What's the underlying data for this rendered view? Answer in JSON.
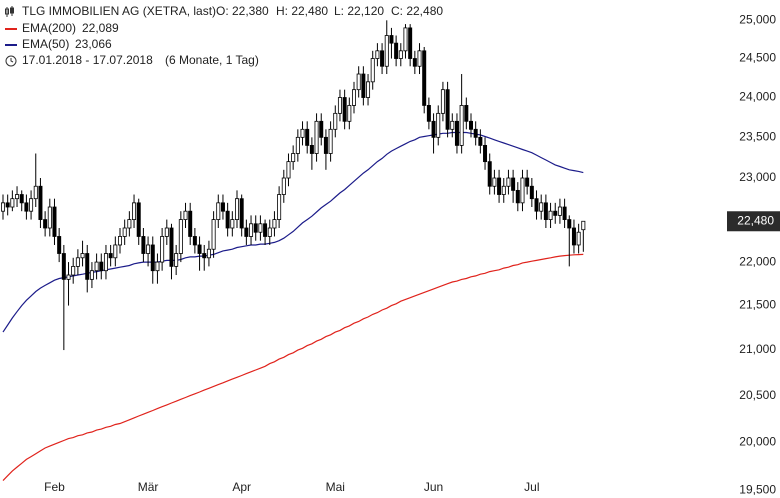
{
  "chart_data": {
    "type": "candlestick",
    "info": [
      "TLG IMMOBILIEN AG (XETRA, last)",
      "O: 22,380",
      "H: 22,480",
      "L: 22,120",
      "C: 22,480"
    ],
    "period": "17.01.2018 - 17.07.2018",
    "period_note": "(6 Monate, 1 Tag)",
    "last_price_label": "22,480",
    "log_scale": true,
    "ylim": [
      19420,
      25270
    ],
    "yticks": [
      {
        "value": 25000,
        "label": "25,000"
      },
      {
        "value": 24500,
        "label": "24,500"
      },
      {
        "value": 24000,
        "label": "24,000"
      },
      {
        "value": 23500,
        "label": "23,500"
      },
      {
        "value": 23000,
        "label": "23,000"
      },
      {
        "value": 22500,
        "label": "22,500"
      },
      {
        "value": 22000,
        "label": "22,000"
      },
      {
        "value": 21500,
        "label": "21,500"
      },
      {
        "value": 21000,
        "label": "21,000"
      },
      {
        "value": 20500,
        "label": "20,500"
      },
      {
        "value": 20000,
        "label": "20,000"
      },
      {
        "value": 19500,
        "label": "19,500"
      }
    ],
    "up_color": "#ffffff",
    "down_color": "#000000",
    "candle_color": "#000000",
    "categories": [
      null,
      null,
      null,
      null,
      null,
      null,
      null,
      null,
      null,
      null,
      null,
      "Feb",
      null,
      null,
      null,
      null,
      null,
      null,
      null,
      null,
      null,
      null,
      null,
      null,
      null,
      null,
      null,
      null,
      null,
      null,
      null,
      "Mär",
      null,
      null,
      null,
      null,
      null,
      null,
      null,
      null,
      null,
      null,
      null,
      null,
      null,
      null,
      null,
      null,
      null,
      null,
      null,
      "Apr",
      null,
      null,
      null,
      null,
      null,
      null,
      null,
      null,
      null,
      null,
      null,
      null,
      null,
      null,
      null,
      null,
      null,
      null,
      null,
      "Mai",
      null,
      null,
      null,
      null,
      null,
      null,
      null,
      null,
      null,
      null,
      null,
      null,
      null,
      null,
      null,
      null,
      null,
      null,
      null,
      null,
      "Jun",
      null,
      null,
      null,
      null,
      null,
      null,
      null,
      null,
      null,
      null,
      null,
      null,
      null,
      null,
      null,
      null,
      null,
      null,
      null,
      null,
      "Jul",
      null,
      null,
      null,
      null,
      null,
      null,
      null,
      null,
      null,
      null,
      null
    ],
    "open": [
      22600,
      22700,
      22650,
      22750,
      22800,
      22700,
      22600,
      22750,
      22900,
      22500,
      22400,
      22650,
      22300,
      22100,
      21800,
      21850,
      21950,
      22050,
      22100,
      21800,
      21900,
      22000,
      21900,
      22100,
      22050,
      22200,
      22300,
      22400,
      22500,
      22700,
      22300,
      22100,
      22200,
      21900,
      22000,
      22300,
      22400,
      21950,
      22100,
      22500,
      22600,
      22300,
      22200,
      22100,
      22050,
      22150,
      22500,
      22700,
      22600,
      22400,
      22500,
      22750,
      22400,
      22300,
      22450,
      22350,
      22450,
      22300,
      22400,
      22500,
      22800,
      23000,
      23200,
      23300,
      23500,
      23600,
      23400,
      23300,
      23700,
      23500,
      23300,
      23600,
      23800,
      24000,
      23700,
      23900,
      24100,
      24300,
      24000,
      24200,
      24500,
      24600,
      24400,
      24800,
      24700,
      24500,
      24600,
      24900,
      24500,
      24400,
      24600,
      23900,
      23700,
      23500,
      23800,
      24100,
      23600,
      23700,
      23400,
      23900,
      23700,
      23600,
      23500,
      23400,
      23200,
      22900,
      23000,
      22800,
      22900,
      23000,
      22850,
      22700,
      23000,
      22900,
      22750,
      22600,
      22700,
      22500,
      22600,
      22550,
      22650,
      22500,
      22400,
      22200,
      22380
    ],
    "high": [
      22800,
      22800,
      22850,
      22900,
      22850,
      22800,
      22850,
      23300,
      23000,
      22600,
      22750,
      22750,
      22400,
      22200,
      22000,
      22050,
      22150,
      22250,
      22200,
      22000,
      22100,
      22100,
      22200,
      22200,
      22300,
      22400,
      22500,
      22600,
      22800,
      22750,
      22400,
      22300,
      22300,
      22100,
      22400,
      22500,
      22450,
      22200,
      22600,
      22700,
      22700,
      22400,
      22300,
      22200,
      22250,
      22600,
      22800,
      22800,
      22700,
      22600,
      22850,
      22800,
      22500,
      22550,
      22550,
      22550,
      22500,
      22500,
      22600,
      22900,
      23100,
      23300,
      23400,
      23600,
      23700,
      23700,
      23500,
      23800,
      23800,
      23600,
      23700,
      23900,
      24100,
      24100,
      24000,
      24200,
      24400,
      24400,
      24300,
      24600,
      24700,
      24700,
      25000,
      24900,
      24800,
      24700,
      24950,
      24950,
      24600,
      24700,
      24650,
      24000,
      23800,
      23900,
      24200,
      24200,
      23800,
      23800,
      24300,
      24000,
      23800,
      23700,
      23600,
      23500,
      23300,
      23100,
      23100,
      23000,
      23100,
      23100,
      22950,
      23100,
      23100,
      23000,
      22850,
      22800,
      22800,
      22700,
      22700,
      22750,
      22750,
      22550,
      22500,
      22450,
      22480
    ],
    "low": [
      22500,
      22550,
      22600,
      22650,
      22600,
      22500,
      22500,
      22650,
      22400,
      22300,
      22300,
      22200,
      22000,
      21000,
      21500,
      21750,
      21850,
      21950,
      21650,
      21700,
      21800,
      21800,
      21800,
      21950,
      21950,
      22100,
      22200,
      22300,
      22400,
      22200,
      22000,
      21950,
      21750,
      21750,
      21900,
      22200,
      21800,
      21850,
      22000,
      22400,
      22200,
      22100,
      21900,
      21900,
      21950,
      22050,
      22400,
      22500,
      22300,
      22300,
      22400,
      22300,
      22200,
      22200,
      22250,
      22250,
      22200,
      22200,
      22300,
      22400,
      22700,
      22900,
      23100,
      23200,
      23400,
      23300,
      23100,
      23200,
      23400,
      23100,
      23200,
      23500,
      23700,
      23600,
      23600,
      23800,
      24000,
      23900,
      23900,
      24100,
      24400,
      24300,
      24300,
      24500,
      24400,
      24400,
      24500,
      24400,
      24300,
      24300,
      23800,
      23600,
      23300,
      23400,
      23700,
      23500,
      23500,
      23300,
      23300,
      23600,
      23500,
      23400,
      23300,
      23100,
      22800,
      22800,
      22700,
      22700,
      22800,
      22700,
      22600,
      22600,
      22800,
      22650,
      22500,
      22500,
      22400,
      22400,
      22450,
      22450,
      22400,
      21950,
      22100,
      22100,
      22120
    ],
    "close": [
      22700,
      22650,
      22750,
      22800,
      22700,
      22600,
      22750,
      22900,
      22500,
      22400,
      22650,
      22300,
      22100,
      21800,
      21850,
      21950,
      22050,
      22100,
      21800,
      21900,
      22000,
      21900,
      22100,
      22050,
      22200,
      22300,
      22400,
      22500,
      22700,
      22300,
      22100,
      22200,
      21900,
      22000,
      22300,
      22400,
      21950,
      22100,
      22500,
      22600,
      22300,
      22200,
      22100,
      22050,
      22150,
      22500,
      22700,
      22600,
      22400,
      22500,
      22750,
      22400,
      22300,
      22450,
      22350,
      22450,
      22300,
      22400,
      22500,
      22800,
      23000,
      23200,
      23300,
      23500,
      23600,
      23400,
      23300,
      23700,
      23500,
      23300,
      23600,
      23800,
      24000,
      23700,
      23900,
      24100,
      24300,
      24000,
      24200,
      24500,
      24600,
      24400,
      24800,
      24700,
      24500,
      24600,
      24900,
      24500,
      24400,
      24600,
      23900,
      23700,
      23500,
      23800,
      24100,
      23600,
      23700,
      23400,
      23900,
      23700,
      23600,
      23500,
      23400,
      23200,
      22900,
      23000,
      22800,
      22900,
      23000,
      22850,
      22700,
      23000,
      22900,
      22750,
      22600,
      22700,
      22500,
      22600,
      22550,
      22650,
      22500,
      22400,
      22200,
      22350,
      22480
    ],
    "series": [
      {
        "name": "EMA(200)",
        "value_label": "22,089",
        "color": "#e0231c",
        "values": [
          19600,
          19650,
          19700,
          19740,
          19780,
          19820,
          19850,
          19880,
          19910,
          19940,
          19960,
          19980,
          20000,
          20020,
          20040,
          20050,
          20070,
          20080,
          20100,
          20110,
          20130,
          20140,
          20160,
          20170,
          20190,
          20200,
          20220,
          20240,
          20260,
          20280,
          20300,
          20320,
          20340,
          20360,
          20380,
          20400,
          20420,
          20440,
          20460,
          20480,
          20500,
          20520,
          20540,
          20560,
          20580,
          20600,
          20620,
          20640,
          20660,
          20680,
          20700,
          20720,
          20740,
          20760,
          20780,
          20800,
          20820,
          20850,
          20870,
          20900,
          20920,
          20950,
          20970,
          21000,
          21020,
          21050,
          21070,
          21100,
          21120,
          21150,
          21170,
          21200,
          21220,
          21250,
          21270,
          21300,
          21320,
          21350,
          21370,
          21400,
          21420,
          21450,
          21470,
          21500,
          21520,
          21550,
          21570,
          21590,
          21610,
          21630,
          21650,
          21670,
          21690,
          21710,
          21730,
          21750,
          21770,
          21780,
          21800,
          21810,
          21830,
          21840,
          21860,
          21870,
          21890,
          21900,
          21910,
          21930,
          21940,
          21960,
          21970,
          21990,
          22000,
          22010,
          22020,
          22030,
          22040,
          22050,
          22060,
          22070,
          22075,
          22080,
          22085,
          22087,
          22089
        ]
      },
      {
        "name": "EMA(50)",
        "value_label": "23,066",
        "color": "#1c1c8a",
        "values": [
          21200,
          21280,
          21360,
          21430,
          21500,
          21560,
          21610,
          21660,
          21700,
          21730,
          21760,
          21790,
          21810,
          21820,
          21830,
          21840,
          21850,
          21860,
          21870,
          21880,
          21890,
          21900,
          21910,
          21920,
          21930,
          21940,
          21950,
          21960,
          21980,
          21990,
          22000,
          22000,
          22000,
          22000,
          22010,
          22020,
          22020,
          22020,
          22030,
          22050,
          22060,
          22060,
          22070,
          22070,
          22080,
          22090,
          22110,
          22130,
          22140,
          22150,
          22170,
          22180,
          22190,
          22200,
          22200,
          22210,
          22210,
          22220,
          22230,
          22250,
          22280,
          22320,
          22360,
          22410,
          22460,
          22500,
          22540,
          22590,
          22640,
          22680,
          22720,
          22770,
          22820,
          22860,
          22910,
          22960,
          23010,
          23060,
          23100,
          23150,
          23200,
          23240,
          23290,
          23330,
          23360,
          23390,
          23420,
          23450,
          23470,
          23500,
          23510,
          23520,
          23530,
          23540,
          23550,
          23550,
          23560,
          23560,
          23560,
          23560,
          23550,
          23540,
          23530,
          23510,
          23490,
          23470,
          23450,
          23430,
          23410,
          23390,
          23370,
          23350,
          23330,
          23310,
          23280,
          23250,
          23220,
          23190,
          23160,
          23140,
          23120,
          23100,
          23090,
          23080,
          23066
        ]
      }
    ]
  }
}
